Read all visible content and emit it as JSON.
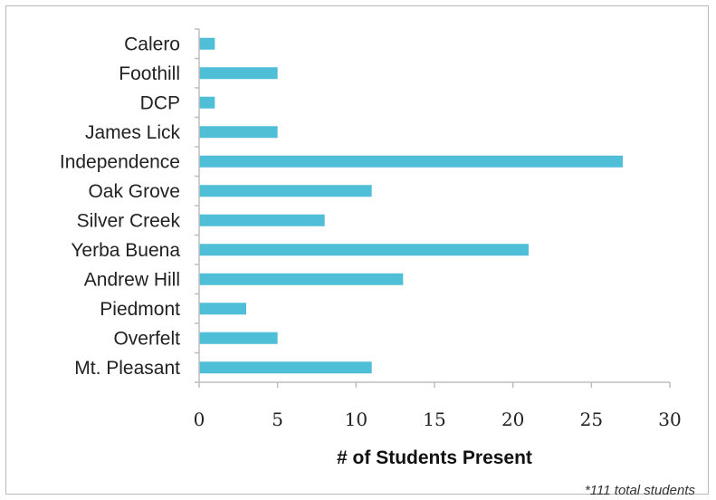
{
  "chart_data": {
    "type": "bar",
    "orientation": "horizontal",
    "categories": [
      "Calero",
      "Foothill",
      "DCP",
      "James Lick",
      "Independence",
      "Oak Grove",
      "Silver Creek",
      "Yerba Buena",
      "Andrew Hill",
      "Piedmont",
      "Overfelt",
      "Mt. Pleasant"
    ],
    "values": [
      1,
      5,
      1,
      5,
      27,
      11,
      8,
      21,
      13,
      3,
      5,
      11
    ],
    "xlabel": "# of Students Present",
    "ylabel": "",
    "xlim": [
      0,
      30
    ],
    "xticks": [
      0,
      5,
      10,
      15,
      20,
      25,
      30
    ],
    "grid": false,
    "bar_color": "#4fbfd8",
    "footnote": "*111 total students"
  }
}
